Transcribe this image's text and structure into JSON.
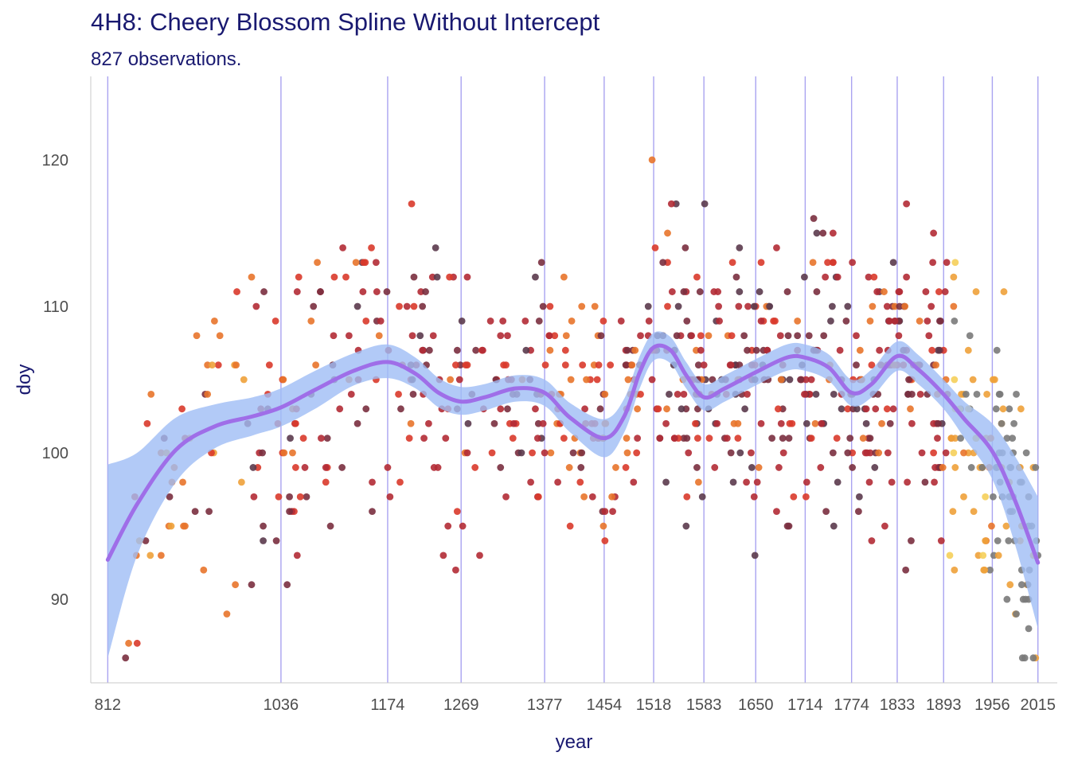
{
  "chart_data": {
    "type": "scatter",
    "title": "4H8: Cheery Blossom Spline Without Intercept",
    "subtitle": "827 observations.",
    "xlabel": "year",
    "ylabel": "doy",
    "xlim": [
      790,
      2040
    ],
    "ylim": [
      84.3,
      125.7
    ],
    "x_ticks": [
      812,
      1036,
      1174,
      1269,
      1377,
      1454,
      1518,
      1583,
      1650,
      1714,
      1774,
      1833,
      1893,
      1956,
      2015
    ],
    "x_tick_labels": [
      "812",
      "1036",
      "1174",
      "1269",
      "1377",
      "1454",
      "1518",
      "1583",
      "1650",
      "1714",
      "1774",
      "1833",
      "1893",
      "1956",
      "2015"
    ],
    "y_ticks": [
      90,
      100,
      110,
      120
    ],
    "y_tick_labels": [
      "90",
      "100",
      "110",
      "120"
    ],
    "knots": [
      812,
      1036,
      1174,
      1269,
      1377,
      1454,
      1518,
      1583,
      1650,
      1714,
      1774,
      1833,
      1893,
      1956,
      2015
    ],
    "colors": {
      "title": "#191970",
      "knot_lines": "#a9a3f0",
      "ribbon": "#9fbdf5",
      "fit_line": "#9f6ee8",
      "axis_line": "#c8c8c8",
      "point_palette": [
        "#5b3a4c",
        "#7a2f3f",
        "#b22b35",
        "#d93a2b",
        "#e8742b",
        "#eea13a",
        "#f5cf5a",
        "#7a7a7a"
      ]
    },
    "fit": {
      "x": [
        812,
        850,
        900,
        950,
        1000,
        1036,
        1080,
        1130,
        1174,
        1210,
        1240,
        1269,
        1300,
        1340,
        1377,
        1410,
        1454,
        1480,
        1500,
        1518,
        1540,
        1560,
        1583,
        1610,
        1650,
        1690,
        1714,
        1745,
        1774,
        1800,
        1833,
        1860,
        1893,
        1920,
        1956,
        1985,
        2015
      ],
      "y": [
        92.7,
        96.5,
        100.2,
        101.8,
        102.5,
        103.1,
        104.3,
        105.6,
        106.2,
        105.4,
        104.1,
        103.5,
        103.8,
        104.4,
        104.1,
        102.4,
        101.0,
        102.5,
        105.5,
        107.2,
        107.0,
        105.3,
        103.8,
        104.4,
        105.5,
        106.5,
        106.5,
        105.8,
        104.1,
        104.7,
        106.6,
        105.7,
        104.0,
        102.3,
        100.1,
        96.8,
        92.5
      ],
      "lower": [
        86.0,
        93.0,
        98.0,
        100.3,
        101.2,
        101.8,
        103.0,
        104.6,
        105.1,
        104.4,
        103.1,
        102.6,
        102.9,
        103.5,
        103.2,
        101.4,
        99.7,
        101.4,
        104.4,
        106.3,
        106.1,
        104.4,
        102.9,
        103.5,
        104.6,
        105.6,
        105.6,
        104.9,
        103.2,
        103.8,
        105.6,
        104.7,
        103.0,
        101.0,
        98.2,
        93.8,
        88.0
      ],
      "upper": [
        99.2,
        100.0,
        102.4,
        103.3,
        103.8,
        104.4,
        105.6,
        106.8,
        107.4,
        106.5,
        105.1,
        104.5,
        104.7,
        105.3,
        105.0,
        103.4,
        102.3,
        103.7,
        106.6,
        108.2,
        107.9,
        106.2,
        104.7,
        105.3,
        106.4,
        107.4,
        107.4,
        106.7,
        105.0,
        105.7,
        107.6,
        106.7,
        105.0,
        103.5,
        102.0,
        99.8,
        97.0
      ]
    }
  }
}
